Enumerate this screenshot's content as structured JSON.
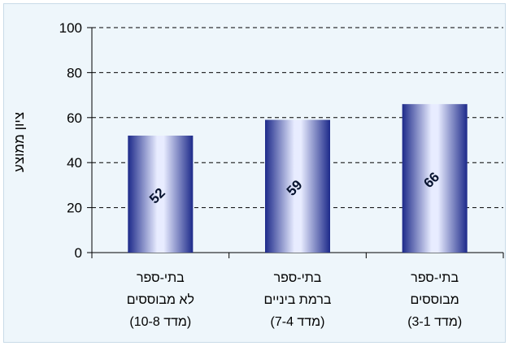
{
  "chart_data": {
    "type": "bar",
    "title": "",
    "xlabel": "",
    "ylabel": "ציון ממוצע",
    "ylim": [
      0,
      100
    ],
    "yticks": [
      0,
      20,
      40,
      60,
      80,
      100
    ],
    "grid": "horizontal-dashed",
    "categories": [
      [
        "בתי-ספר",
        "לא מבוססים",
        "(מדד 10-8)"
      ],
      [
        "בתי-ספר",
        "ברמת ביניים",
        "(מדד 7-4)"
      ],
      [
        "בתי-ספר",
        "מבוססים",
        "(מדד 3-1)"
      ]
    ],
    "values": [
      52,
      59,
      66
    ],
    "data_labels": [
      "52",
      "59",
      "66"
    ],
    "colors": {
      "bar_edge": "#1d2a8a",
      "bar_light": "#e8ecff",
      "background": "#eef6fb",
      "grid": "#000000"
    }
  }
}
